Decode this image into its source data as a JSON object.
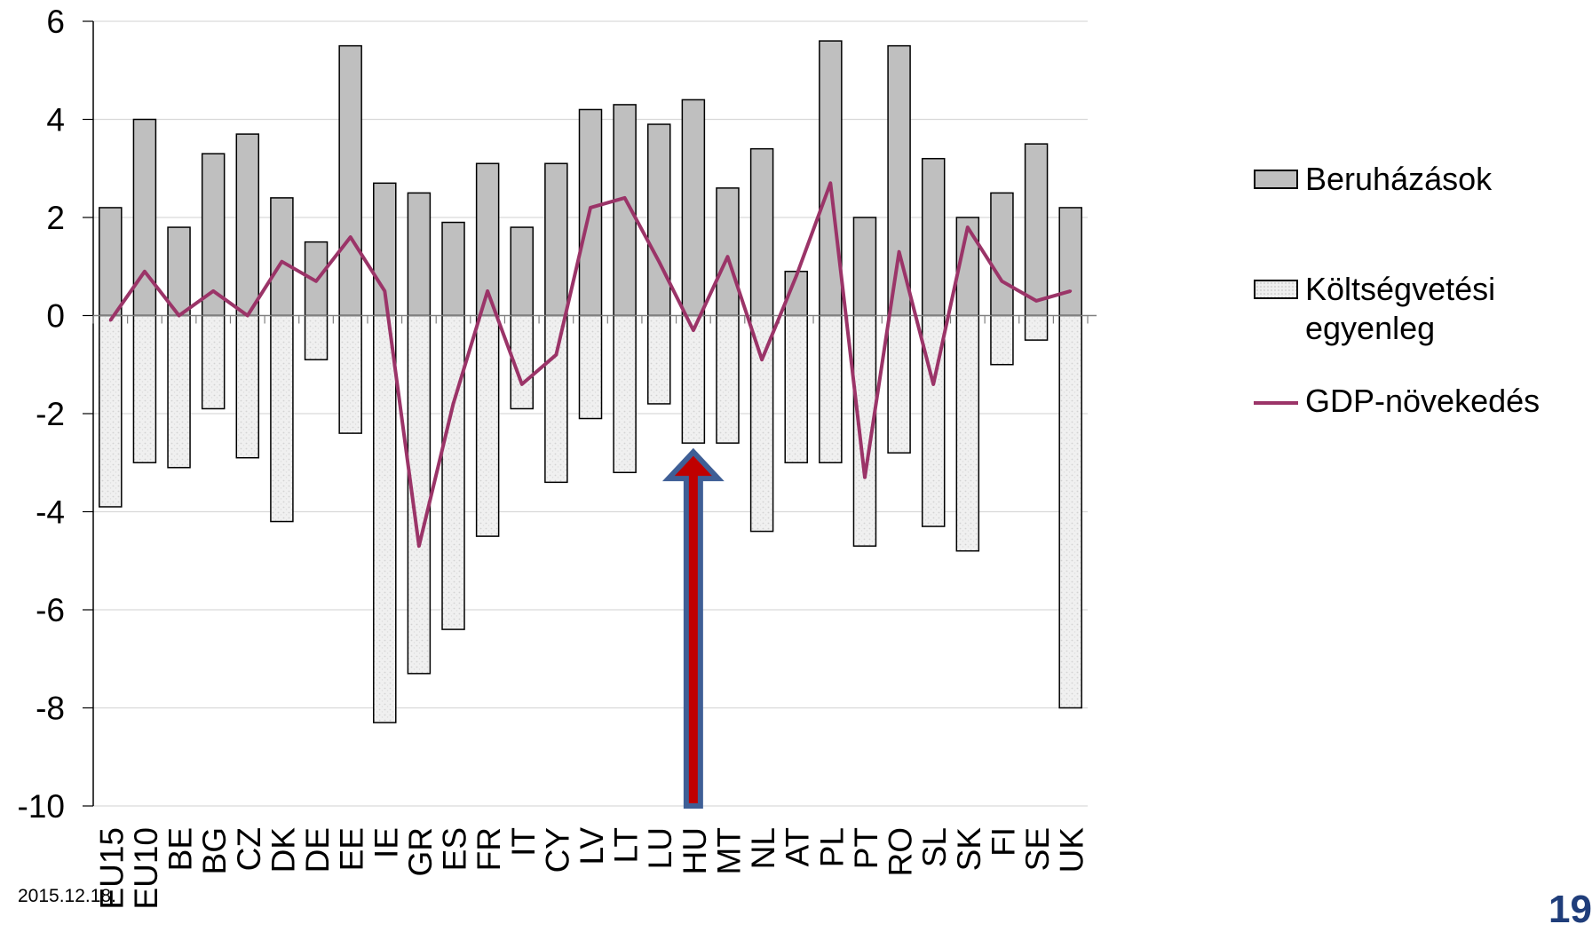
{
  "chart_data": {
    "type": "bar",
    "categories": [
      "EU15",
      "EU10",
      "BE",
      "BG",
      "CZ",
      "DK",
      "DE",
      "EE",
      "IE",
      "GR",
      "ES",
      "FR",
      "IT",
      "CY",
      "LV",
      "LT",
      "LU",
      "HU",
      "MT",
      "NL",
      "AT",
      "PL",
      "PT",
      "RO",
      "SL",
      "SK",
      "FI",
      "SE",
      "UK"
    ],
    "series": [
      {
        "name": "Beruházások",
        "kind": "bar",
        "values": [
          2.2,
          4.0,
          1.8,
          3.3,
          3.7,
          2.4,
          1.5,
          5.5,
          2.7,
          2.5,
          1.9,
          3.1,
          1.8,
          3.1,
          4.2,
          4.3,
          3.9,
          4.4,
          2.6,
          3.4,
          0.9,
          5.6,
          2.0,
          5.5,
          3.2,
          2.0,
          2.5,
          3.5,
          2.2
        ]
      },
      {
        "name": "Költségvetési egyenleg",
        "kind": "bar",
        "values": [
          -3.9,
          -3.0,
          -3.1,
          -1.9,
          -2.9,
          -4.2,
          -0.9,
          -2.4,
          -8.3,
          -7.3,
          -6.4,
          -4.5,
          -1.9,
          -3.4,
          -2.1,
          -3.2,
          -1.8,
          -2.6,
          -2.6,
          -4.4,
          -3.0,
          -3.0,
          -4.7,
          -2.8,
          -4.3,
          -4.8,
          -1.0,
          -0.5,
          -8.0
        ]
      },
      {
        "name": "GDP-növekedés",
        "kind": "line",
        "values": [
          -0.1,
          0.9,
          0.0,
          0.5,
          0.0,
          1.1,
          0.7,
          1.6,
          0.5,
          -4.7,
          -1.8,
          0.5,
          -1.4,
          -0.8,
          2.2,
          2.4,
          1.1,
          -0.3,
          1.2,
          -0.9,
          0.8,
          2.7,
          -3.3,
          1.3,
          -1.4,
          1.8,
          0.7,
          0.3,
          0.5
        ]
      }
    ],
    "ylim": [
      -10,
      6
    ],
    "yticks": [
      6,
      4,
      2,
      0,
      -2,
      -4,
      -6,
      -8,
      -10
    ],
    "ytick_labels": [
      "6",
      "4",
      "2",
      "0",
      "-2",
      "-4",
      "-6",
      "-8",
      "-10"
    ],
    "grid": true,
    "legend_position": "right",
    "annotation": {
      "type": "arrow",
      "category": "HU",
      "color_fill": "#c00000",
      "color_outline": "#3f5f96"
    },
    "colors": {
      "bar_positive": "#bfbfbf",
      "bar_negative": "#efefef",
      "line": "#9b3468",
      "grid": "#d9d9d9"
    }
  },
  "legend": {
    "items": [
      {
        "label": "Beruházások"
      },
      {
        "label": "Költségvetési egyenleg"
      },
      {
        "label": "GDP-növekedés"
      }
    ]
  },
  "footer": {
    "date": "2015.12.18.",
    "page": "19"
  }
}
